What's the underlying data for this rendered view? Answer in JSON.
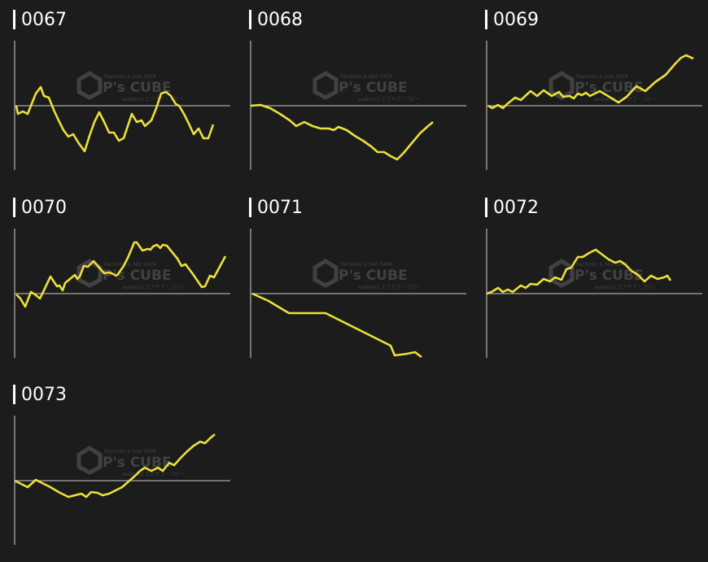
{
  "watermark": {
    "top": "Pachinko & Slot DATA",
    "brand": "P's CUBE",
    "bottom": "walkers2 エクサブ・コピー"
  },
  "colors": {
    "background": "#1c1c1c",
    "line": "#ece03a",
    "axis": "#a8a8a8",
    "title": "#ffffff"
  },
  "chart_data": [
    {
      "type": "line",
      "title": "0067",
      "baseline": 0,
      "points": [
        [
          0,
          0
        ],
        [
          2,
          -10
        ],
        [
          8,
          -7
        ],
        [
          14,
          -10
        ],
        [
          18,
          0
        ],
        [
          24,
          15
        ],
        [
          30,
          23
        ],
        [
          34,
          12
        ],
        [
          40,
          10
        ],
        [
          46,
          -5
        ],
        [
          52,
          -18
        ],
        [
          58,
          -30
        ],
        [
          64,
          -38
        ],
        [
          70,
          -35
        ],
        [
          76,
          -45
        ],
        [
          84,
          -56
        ],
        [
          90,
          -37
        ],
        [
          96,
          -20
        ],
        [
          102,
          -8
        ],
        [
          108,
          -20
        ],
        [
          114,
          -33
        ],
        [
          120,
          -33
        ],
        [
          126,
          -43
        ],
        [
          132,
          -40
        ],
        [
          138,
          -22
        ],
        [
          142,
          -10
        ],
        [
          148,
          -20
        ],
        [
          154,
          -18
        ],
        [
          158,
          -25
        ],
        [
          166,
          -18
        ],
        [
          172,
          -3
        ],
        [
          178,
          15
        ],
        [
          184,
          17
        ],
        [
          190,
          12
        ],
        [
          196,
          2
        ],
        [
          200,
          0
        ],
        [
          206,
          -10
        ],
        [
          212,
          -22
        ],
        [
          218,
          -35
        ],
        [
          224,
          -28
        ],
        [
          230,
          -40
        ],
        [
          236,
          -40
        ],
        [
          242,
          -23
        ]
      ]
    },
    {
      "type": "line",
      "title": "0068",
      "baseline": 0,
      "points": [
        [
          0,
          0
        ],
        [
          12,
          1
        ],
        [
          24,
          -3
        ],
        [
          36,
          -10
        ],
        [
          48,
          -18
        ],
        [
          56,
          -25
        ],
        [
          66,
          -20
        ],
        [
          76,
          -25
        ],
        [
          86,
          -28
        ],
        [
          96,
          -28
        ],
        [
          102,
          -30
        ],
        [
          108,
          -26
        ],
        [
          118,
          -30
        ],
        [
          128,
          -37
        ],
        [
          138,
          -43
        ],
        [
          148,
          -50
        ],
        [
          156,
          -57
        ],
        [
          164,
          -57
        ],
        [
          172,
          -62
        ],
        [
          180,
          -66
        ],
        [
          188,
          -58
        ],
        [
          198,
          -46
        ],
        [
          208,
          -34
        ],
        [
          218,
          -25
        ],
        [
          224,
          -20
        ]
      ]
    },
    {
      "type": "line",
      "title": "0069",
      "baseline": 0,
      "points": [
        [
          0,
          0
        ],
        [
          5,
          -3
        ],
        [
          12,
          1
        ],
        [
          18,
          -3
        ],
        [
          23,
          2
        ],
        [
          33,
          10
        ],
        [
          40,
          7
        ],
        [
          52,
          18
        ],
        [
          60,
          12
        ],
        [
          68,
          19
        ],
        [
          78,
          12
        ],
        [
          87,
          17
        ],
        [
          92,
          11
        ],
        [
          100,
          12
        ],
        [
          105,
          9
        ],
        [
          110,
          15
        ],
        [
          115,
          13
        ],
        [
          120,
          16
        ],
        [
          125,
          12
        ],
        [
          137,
          18
        ],
        [
          147,
          12
        ],
        [
          160,
          4
        ],
        [
          170,
          11
        ],
        [
          182,
          24
        ],
        [
          193,
          18
        ],
        [
          205,
          29
        ],
        [
          218,
          38
        ],
        [
          230,
          52
        ],
        [
          237,
          59
        ],
        [
          243,
          62
        ],
        [
          252,
          58
        ]
      ]
    },
    {
      "type": "line",
      "title": "0070",
      "baseline": 0,
      "points": [
        [
          0,
          -1
        ],
        [
          5,
          -6
        ],
        [
          11,
          -16
        ],
        [
          18,
          2
        ],
        [
          23,
          -1
        ],
        [
          29,
          -6
        ],
        [
          33,
          2
        ],
        [
          42,
          21
        ],
        [
          50,
          9
        ],
        [
          53,
          10
        ],
        [
          57,
          4
        ],
        [
          60,
          13
        ],
        [
          72,
          23
        ],
        [
          75,
          18
        ],
        [
          78,
          21
        ],
        [
          83,
          34
        ],
        [
          88,
          33
        ],
        [
          95,
          40
        ],
        [
          108,
          25
        ],
        [
          115,
          26
        ],
        [
          123,
          22
        ],
        [
          125,
          24
        ],
        [
          132,
          34
        ],
        [
          138,
          46
        ],
        [
          145,
          63
        ],
        [
          148,
          63
        ],
        [
          155,
          53
        ],
        [
          162,
          55
        ],
        [
          165,
          54
        ],
        [
          168,
          58
        ],
        [
          173,
          60
        ],
        [
          177,
          56
        ],
        [
          180,
          60
        ],
        [
          185,
          59
        ],
        [
          198,
          43
        ],
        [
          203,
          34
        ],
        [
          208,
          36
        ],
        [
          217,
          24
        ],
        [
          228,
          8
        ],
        [
          232,
          9
        ],
        [
          238,
          22
        ],
        [
          243,
          20
        ],
        [
          257,
          46
        ]
      ]
    },
    {
      "type": "line",
      "title": "0071",
      "baseline": 0,
      "points": [
        [
          0,
          0
        ],
        [
          20,
          -9
        ],
        [
          45,
          -24
        ],
        [
          70,
          -24
        ],
        [
          90,
          -24
        ],
        [
          110,
          -34
        ],
        [
          130,
          -44
        ],
        [
          150,
          -54
        ],
        [
          170,
          -64
        ],
        [
          175,
          -76
        ],
        [
          190,
          -74
        ],
        [
          200,
          -72
        ],
        [
          208,
          -78
        ]
      ]
    },
    {
      "type": "line",
      "title": "0072",
      "baseline": 0,
      "points": [
        [
          0,
          0
        ],
        [
          6,
          2
        ],
        [
          14,
          7
        ],
        [
          20,
          2
        ],
        [
          26,
          5
        ],
        [
          32,
          2
        ],
        [
          42,
          10
        ],
        [
          48,
          7
        ],
        [
          54,
          12
        ],
        [
          62,
          11
        ],
        [
          70,
          18
        ],
        [
          78,
          15
        ],
        [
          84,
          20
        ],
        [
          92,
          17
        ],
        [
          98,
          30
        ],
        [
          104,
          32
        ],
        [
          112,
          45
        ],
        [
          118,
          45
        ],
        [
          126,
          50
        ],
        [
          134,
          54
        ],
        [
          142,
          48
        ],
        [
          150,
          42
        ],
        [
          158,
          38
        ],
        [
          164,
          40
        ],
        [
          170,
          36
        ],
        [
          178,
          28
        ],
        [
          186,
          23
        ],
        [
          194,
          15
        ],
        [
          202,
          22
        ],
        [
          210,
          18
        ],
        [
          218,
          20
        ],
        [
          222,
          22
        ],
        [
          226,
          16
        ]
      ]
    },
    {
      "type": "line",
      "title": "0073",
      "baseline": 0,
      "points": [
        [
          0,
          0
        ],
        [
          8,
          -4
        ],
        [
          16,
          -8
        ],
        [
          26,
          1
        ],
        [
          36,
          -4
        ],
        [
          44,
          -8
        ],
        [
          54,
          -14
        ],
        [
          66,
          -20
        ],
        [
          74,
          -18
        ],
        [
          82,
          -16
        ],
        [
          88,
          -20
        ],
        [
          94,
          -14
        ],
        [
          102,
          -15
        ],
        [
          108,
          -18
        ],
        [
          116,
          -16
        ],
        [
          124,
          -12
        ],
        [
          132,
          -8
        ],
        [
          140,
          -1
        ],
        [
          148,
          6
        ],
        [
          154,
          12
        ],
        [
          160,
          16
        ],
        [
          168,
          12
        ],
        [
          176,
          16
        ],
        [
          182,
          12
        ],
        [
          190,
          22
        ],
        [
          196,
          19
        ],
        [
          204,
          28
        ],
        [
          212,
          36
        ],
        [
          220,
          43
        ],
        [
          228,
          48
        ],
        [
          234,
          46
        ],
        [
          240,
          52
        ],
        [
          246,
          57
        ]
      ]
    }
  ]
}
